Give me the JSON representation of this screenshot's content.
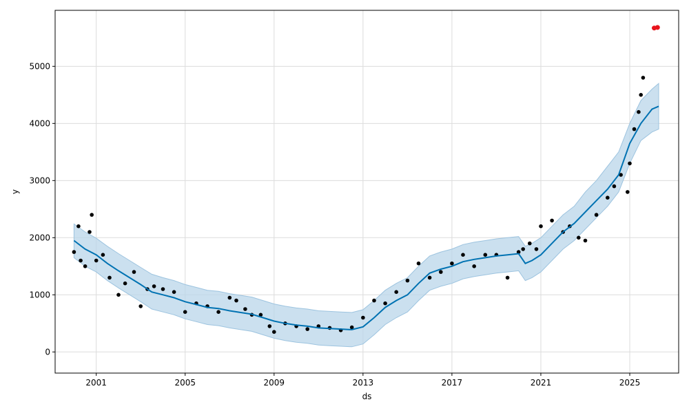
{
  "chart_data": {
    "type": "line",
    "xlabel": "ds",
    "ylabel": "y",
    "xlim": [
      1999.15,
      2027.2
    ],
    "ylim": [
      -370,
      5980
    ],
    "grid": true,
    "x_ticks": [
      {
        "value": 2001,
        "label": "2001"
      },
      {
        "value": 2005,
        "label": "2005"
      },
      {
        "value": 2009,
        "label": "2009"
      },
      {
        "value": 2013,
        "label": "2013"
      },
      {
        "value": 2017,
        "label": "2017"
      },
      {
        "value": 2021,
        "label": "2021"
      },
      {
        "value": 2025,
        "label": "2025"
      }
    ],
    "y_ticks": [
      {
        "value": 0,
        "label": "0"
      },
      {
        "value": 1000,
        "label": "1000"
      },
      {
        "value": 2000,
        "label": "2000"
      },
      {
        "value": 3000,
        "label": "3000"
      },
      {
        "value": 4000,
        "label": "4000"
      },
      {
        "value": 5000,
        "label": "5000"
      }
    ],
    "colors": {
      "observed": "#000000",
      "forecast": "#0072B2",
      "interval_fill": "#b9d6ea",
      "interval_edge": "#9cc3df",
      "highlight": "#e8141c",
      "grid": "#dcdcdc"
    },
    "forecast": {
      "x": [
        2000.0,
        2000.5,
        2001.0,
        2001.5,
        2002.0,
        2002.5,
        2003.0,
        2003.5,
        2004.0,
        2004.5,
        2005.0,
        2005.5,
        2006.0,
        2006.5,
        2007.0,
        2007.5,
        2008.0,
        2008.5,
        2009.0,
        2009.5,
        2010.0,
        2010.5,
        2011.0,
        2011.5,
        2012.0,
        2012.5,
        2013.0,
        2013.5,
        2014.0,
        2014.5,
        2015.0,
        2015.5,
        2016.0,
        2016.5,
        2017.0,
        2017.5,
        2018.0,
        2018.5,
        2019.0,
        2019.5,
        2020.0,
        2020.3,
        2020.6,
        2021.0,
        2021.5,
        2022.0,
        2022.5,
        2023.0,
        2023.5,
        2024.0,
        2024.5,
        2025.0,
        2025.5,
        2026.0,
        2026.3
      ],
      "y": [
        1950,
        1800,
        1700,
        1550,
        1420,
        1300,
        1180,
        1050,
        1000,
        950,
        880,
        830,
        780,
        760,
        720,
        690,
        660,
        600,
        540,
        500,
        470,
        450,
        420,
        410,
        400,
        390,
        440,
        600,
        780,
        900,
        1000,
        1200,
        1380,
        1450,
        1500,
        1580,
        1620,
        1650,
        1680,
        1700,
        1720,
        1550,
        1600,
        1700,
        1900,
        2100,
        2250,
        2450,
        2650,
        2850,
        3100,
        3650,
        4000,
        4250,
        4300
      ],
      "upper": [
        2240,
        2100,
        1990,
        1850,
        1720,
        1600,
        1480,
        1360,
        1300,
        1250,
        1180,
        1130,
        1080,
        1060,
        1020,
        990,
        960,
        900,
        840,
        800,
        770,
        750,
        720,
        710,
        700,
        690,
        740,
        900,
        1080,
        1200,
        1300,
        1500,
        1680,
        1750,
        1800,
        1880,
        1920,
        1950,
        1980,
        2000,
        2020,
        1850,
        1900,
        2000,
        2200,
        2400,
        2550,
        2800,
        3000,
        3250,
        3500,
        4000,
        4400,
        4600,
        4700
      ],
      "lower": [
        1650,
        1500,
        1400,
        1250,
        1120,
        1000,
        880,
        750,
        700,
        650,
        580,
        530,
        480,
        460,
        420,
        390,
        360,
        300,
        240,
        200,
        170,
        150,
        120,
        110,
        100,
        90,
        140,
        300,
        480,
        600,
        700,
        900,
        1080,
        1150,
        1200,
        1280,
        1320,
        1350,
        1380,
        1400,
        1420,
        1250,
        1300,
        1400,
        1600,
        1800,
        1950,
        2150,
        2350,
        2550,
        2800,
        3300,
        3700,
        3850,
        3900
      ]
    },
    "observed": {
      "x": [
        2000.0,
        2000.2,
        2000.3,
        2000.5,
        2000.7,
        2000.8,
        2001.0,
        2001.3,
        2001.6,
        2002.0,
        2002.3,
        2002.7,
        2003.0,
        2003.3,
        2003.6,
        2004.0,
        2004.5,
        2005.0,
        2005.5,
        2006.0,
        2006.5,
        2007.0,
        2007.3,
        2007.7,
        2008.0,
        2008.4,
        2008.8,
        2009.0,
        2009.5,
        2010.0,
        2010.5,
        2011.0,
        2011.5,
        2012.0,
        2012.5,
        2013.0,
        2013.5,
        2014.0,
        2014.5,
        2015.0,
        2015.5,
        2016.0,
        2016.5,
        2017.0,
        2017.5,
        2018.0,
        2018.5,
        2019.0,
        2019.5,
        2020.0,
        2020.2,
        2020.5,
        2020.8,
        2021.0,
        2021.5,
        2022.0,
        2022.3,
        2022.7,
        2023.0,
        2023.5,
        2024.0,
        2024.3,
        2024.6,
        2024.9,
        2025.0,
        2025.2,
        2025.4,
        2025.5,
        2025.6
      ],
      "y": [
        1750,
        2200,
        1600,
        1500,
        2100,
        2400,
        1600,
        1700,
        1300,
        1000,
        1200,
        1400,
        800,
        1100,
        1150,
        1100,
        1050,
        700,
        850,
        800,
        700,
        950,
        900,
        750,
        650,
        650,
        450,
        350,
        500,
        450,
        400,
        450,
        420,
        380,
        430,
        600,
        900,
        850,
        1050,
        1250,
        1550,
        1300,
        1400,
        1550,
        1700,
        1500,
        1700,
        1700,
        1300,
        1750,
        1800,
        1900,
        1800,
        2200,
        2300,
        2100,
        2200,
        2000,
        1950,
        2400,
        2700,
        2900,
        3100,
        2800,
        3300,
        3900,
        4200,
        4500,
        4800
      ]
    },
    "highlight": {
      "x": [
        2026.1,
        2026.25
      ],
      "y": [
        5670,
        5680
      ]
    }
  }
}
